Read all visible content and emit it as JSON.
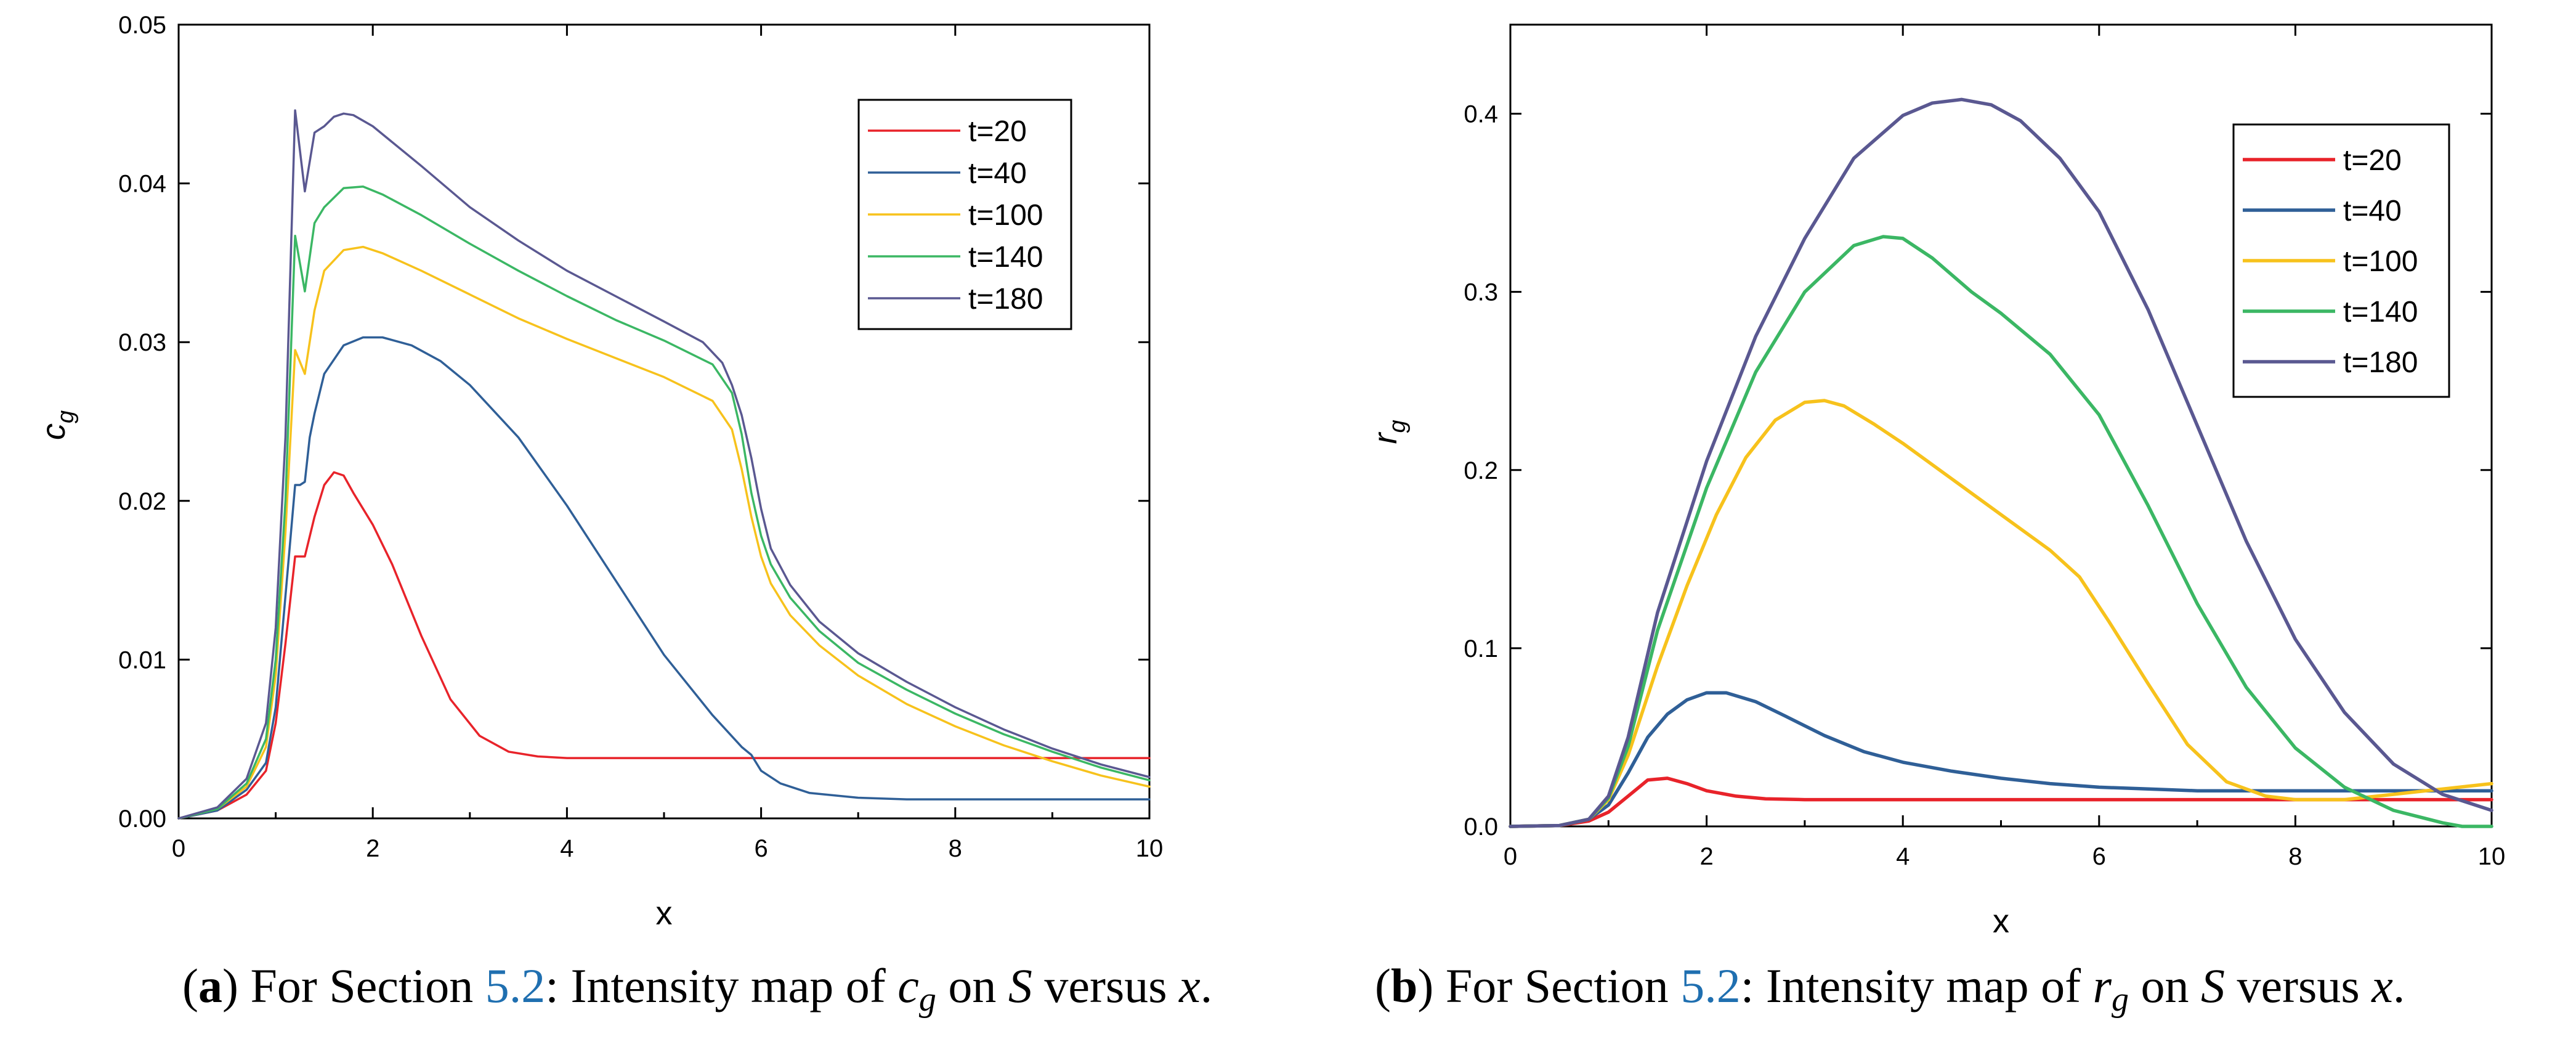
{
  "chart_data": [
    {
      "type": "line",
      "panel": "a",
      "xlabel": "x",
      "ylabel": "c",
      "ylabel_sub": "g",
      "xlim": [
        0,
        10
      ],
      "ylim": [
        0,
        0.05
      ],
      "xticks": [
        0,
        2,
        4,
        6,
        8,
        10
      ],
      "xtick_labels": [
        "0",
        "2",
        "4",
        "6",
        "8",
        "10"
      ],
      "yticks": [
        0,
        0.01,
        0.02,
        0.03,
        0.04,
        0.05
      ],
      "ytick_labels": [
        "0.00",
        "0.01",
        "0.02",
        "0.03",
        "0.04",
        "0.05"
      ],
      "legend_position": "top-right",
      "series": [
        {
          "name": "t=20",
          "color": "#e8232a",
          "x": [
            0,
            0.4,
            0.7,
            0.9,
            1.0,
            1.1,
            1.2,
            1.25,
            1.3,
            1.4,
            1.5,
            1.6,
            1.7,
            1.8,
            2.0,
            2.2,
            2.5,
            2.8,
            3.1,
            3.4,
            3.7,
            4.0,
            4.5,
            6,
            8,
            10
          ],
          "y": [
            0,
            0.0005,
            0.0015,
            0.003,
            0.006,
            0.011,
            0.0165,
            0.0165,
            0.0165,
            0.019,
            0.021,
            0.0218,
            0.0216,
            0.0205,
            0.0185,
            0.016,
            0.0115,
            0.0075,
            0.0052,
            0.0042,
            0.0039,
            0.0038,
            0.0038,
            0.0038,
            0.0038,
            0.0038
          ]
        },
        {
          "name": "t=40",
          "color": "#2f5f97",
          "x": [
            0,
            0.4,
            0.7,
            0.9,
            1.0,
            1.1,
            1.2,
            1.25,
            1.3,
            1.35,
            1.4,
            1.5,
            1.7,
            1.9,
            2.1,
            2.4,
            2.7,
            3.0,
            3.5,
            4.0,
            4.5,
            5.0,
            5.5,
            5.8,
            5.9,
            6.0,
            6.2,
            6.5,
            7.0,
            7.5,
            8,
            9,
            10
          ],
          "y": [
            0,
            0.0005,
            0.0018,
            0.0035,
            0.007,
            0.014,
            0.021,
            0.021,
            0.0212,
            0.024,
            0.0255,
            0.028,
            0.0298,
            0.0303,
            0.0303,
            0.0298,
            0.0288,
            0.0273,
            0.024,
            0.0197,
            0.015,
            0.0103,
            0.0065,
            0.0045,
            0.004,
            0.003,
            0.0022,
            0.0016,
            0.0013,
            0.0012,
            0.0012,
            0.0012,
            0.0012
          ]
        },
        {
          "name": "t=100",
          "color": "#f7c21c",
          "x": [
            0,
            0.4,
            0.7,
            0.9,
            1.0,
            1.1,
            1.2,
            1.3,
            1.4,
            1.5,
            1.7,
            1.9,
            2.1,
            2.5,
            3.0,
            3.5,
            4.0,
            4.5,
            5.0,
            5.5,
            5.7,
            5.8,
            5.9,
            6.0,
            6.1,
            6.3,
            6.6,
            7.0,
            7.5,
            8,
            8.5,
            9,
            9.5,
            10
          ],
          "y": [
            0,
            0.0006,
            0.002,
            0.0045,
            0.009,
            0.018,
            0.0295,
            0.028,
            0.032,
            0.0345,
            0.0358,
            0.036,
            0.0356,
            0.0345,
            0.033,
            0.0315,
            0.0302,
            0.029,
            0.0278,
            0.0263,
            0.0245,
            0.022,
            0.019,
            0.0165,
            0.0148,
            0.0128,
            0.0109,
            0.009,
            0.0072,
            0.0058,
            0.0046,
            0.0036,
            0.0027,
            0.002
          ]
        },
        {
          "name": "t=140",
          "color": "#3bb764",
          "x": [
            0,
            0.4,
            0.7,
            0.9,
            1.0,
            1.1,
            1.2,
            1.3,
            1.4,
            1.5,
            1.7,
            1.9,
            2.1,
            2.5,
            3.0,
            3.5,
            4.0,
            4.5,
            5.0,
            5.5,
            5.7,
            5.8,
            5.9,
            6.0,
            6.1,
            6.3,
            6.6,
            7.0,
            7.5,
            8,
            8.5,
            9,
            9.5,
            10
          ],
          "y": [
            0,
            0.0006,
            0.0022,
            0.005,
            0.01,
            0.02,
            0.0367,
            0.0332,
            0.0375,
            0.0385,
            0.0397,
            0.0398,
            0.0393,
            0.038,
            0.0362,
            0.0345,
            0.0329,
            0.0314,
            0.0301,
            0.0286,
            0.0268,
            0.0242,
            0.0205,
            0.0178,
            0.016,
            0.0139,
            0.0118,
            0.0098,
            0.0081,
            0.0066,
            0.0053,
            0.0042,
            0.0032,
            0.0024
          ]
        },
        {
          "name": "t=180",
          "color": "#5a5891",
          "x": [
            0,
            0.4,
            0.7,
            0.9,
            1.0,
            1.1,
            1.2,
            1.3,
            1.4,
            1.5,
            1.6,
            1.7,
            1.8,
            2.0,
            2.5,
            3.0,
            3.5,
            4.0,
            4.5,
            5.0,
            5.4,
            5.6,
            5.7,
            5.8,
            5.9,
            6.0,
            6.1,
            6.3,
            6.6,
            7.0,
            7.5,
            8,
            8.5,
            9,
            9.5,
            10
          ],
          "y": [
            0,
            0.0007,
            0.0025,
            0.006,
            0.012,
            0.024,
            0.0446,
            0.0395,
            0.0432,
            0.0436,
            0.0442,
            0.0444,
            0.0443,
            0.0436,
            0.0411,
            0.0385,
            0.0364,
            0.0345,
            0.0329,
            0.0313,
            0.03,
            0.0287,
            0.0273,
            0.0254,
            0.0227,
            0.0195,
            0.017,
            0.0147,
            0.0124,
            0.0104,
            0.0086,
            0.007,
            0.0056,
            0.0044,
            0.0034,
            0.0026
          ]
        }
      ]
    },
    {
      "type": "line",
      "panel": "b",
      "xlabel": "x",
      "ylabel": "r",
      "ylabel_sub": "g",
      "xlim": [
        0,
        10
      ],
      "ylim": [
        0,
        0.45
      ],
      "xticks": [
        0,
        2,
        4,
        6,
        8,
        10
      ],
      "xtick_labels": [
        "0",
        "2",
        "4",
        "6",
        "8",
        "10"
      ],
      "yticks": [
        0,
        0.1,
        0.2,
        0.3,
        0.4
      ],
      "ytick_labels": [
        "0.0",
        "0.1",
        "0.2",
        "0.3",
        "0.4"
      ],
      "legend_position": "top-right",
      "series": [
        {
          "name": "t=20",
          "color": "#e8232a",
          "x": [
            0,
            0.5,
            0.8,
            1.0,
            1.2,
            1.4,
            1.6,
            1.8,
            2.0,
            2.3,
            2.6,
            3.0,
            4,
            6,
            8,
            10
          ],
          "y": [
            0,
            0.0005,
            0.003,
            0.008,
            0.017,
            0.026,
            0.027,
            0.024,
            0.02,
            0.017,
            0.0155,
            0.015,
            0.015,
            0.015,
            0.015,
            0.015
          ]
        },
        {
          "name": "t=40",
          "color": "#2f5f97",
          "x": [
            0,
            0.5,
            0.8,
            1.0,
            1.2,
            1.4,
            1.6,
            1.8,
            2.0,
            2.2,
            2.5,
            2.8,
            3.2,
            3.6,
            4.0,
            4.5,
            5.0,
            5.5,
            6.0,
            6.5,
            7,
            8,
            9,
            10
          ],
          "y": [
            0,
            0.0005,
            0.004,
            0.012,
            0.03,
            0.05,
            0.063,
            0.071,
            0.075,
            0.075,
            0.07,
            0.062,
            0.051,
            0.042,
            0.036,
            0.031,
            0.027,
            0.024,
            0.022,
            0.021,
            0.02,
            0.02,
            0.02,
            0.02
          ]
        },
        {
          "name": "t=100",
          "color": "#f7c21c",
          "x": [
            0,
            0.5,
            0.8,
            1.0,
            1.2,
            1.5,
            1.8,
            2.1,
            2.4,
            2.7,
            3.0,
            3.2,
            3.4,
            3.7,
            4.0,
            4.5,
            5.0,
            5.5,
            5.8,
            6.1,
            6.5,
            6.9,
            7.3,
            7.7,
            8,
            8.5,
            9,
            9.5,
            10
          ],
          "y": [
            0,
            0.0005,
            0.004,
            0.015,
            0.04,
            0.09,
            0.135,
            0.175,
            0.207,
            0.228,
            0.238,
            0.239,
            0.236,
            0.226,
            0.215,
            0.195,
            0.175,
            0.155,
            0.14,
            0.115,
            0.08,
            0.046,
            0.025,
            0.017,
            0.015,
            0.015,
            0.018,
            0.021,
            0.024
          ]
        },
        {
          "name": "t=140",
          "color": "#3bb764",
          "x": [
            0,
            0.5,
            0.8,
            1.0,
            1.2,
            1.5,
            2.0,
            2.5,
            3.0,
            3.5,
            3.8,
            4.0,
            4.3,
            4.7,
            5.0,
            5.5,
            6.0,
            6.5,
            7.0,
            7.5,
            8.0,
            8.5,
            9.0,
            9.5,
            9.7,
            10
          ],
          "y": [
            0,
            0.0005,
            0.004,
            0.016,
            0.045,
            0.11,
            0.19,
            0.255,
            0.3,
            0.326,
            0.331,
            0.33,
            0.319,
            0.3,
            0.288,
            0.265,
            0.231,
            0.18,
            0.125,
            0.078,
            0.044,
            0.022,
            0.009,
            0.002,
            0.0,
            0.0
          ]
        },
        {
          "name": "t=180",
          "color": "#5a5891",
          "x": [
            0,
            0.5,
            0.8,
            1.0,
            1.2,
            1.5,
            2.0,
            2.5,
            3.0,
            3.5,
            4.0,
            4.3,
            4.6,
            4.9,
            5.2,
            5.6,
            6.0,
            6.5,
            7.0,
            7.5,
            8.0,
            8.5,
            9.0,
            9.5,
            10
          ],
          "y": [
            0,
            0.0005,
            0.004,
            0.017,
            0.05,
            0.12,
            0.205,
            0.275,
            0.33,
            0.375,
            0.399,
            0.406,
            0.408,
            0.405,
            0.396,
            0.375,
            0.345,
            0.29,
            0.225,
            0.16,
            0.105,
            0.064,
            0.035,
            0.018,
            0.009
          ]
        }
      ]
    }
  ],
  "captions": {
    "a": {
      "label": "a",
      "prefix": "For Section ",
      "link": "5.2",
      "mid": ": Intensity map of ",
      "var": "c",
      "sub": "g",
      "on": " on ",
      "set": "S",
      "versus": " versus ",
      "axis": "x",
      "end": "."
    },
    "b": {
      "label": "b",
      "prefix": "For Section ",
      "link": "5.2",
      "mid": ": Intensity map of ",
      "var": "r",
      "sub": "g",
      "on": " on ",
      "set": "S",
      "versus": " versus ",
      "axis": "x",
      "end": "."
    }
  }
}
